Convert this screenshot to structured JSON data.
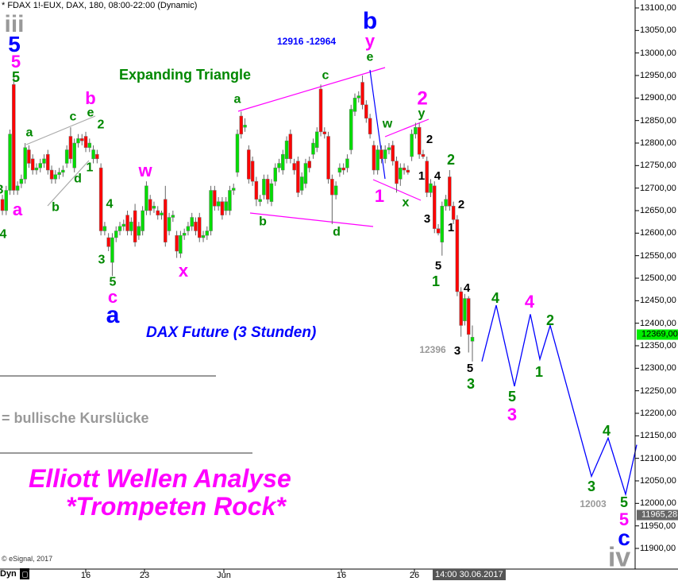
{
  "header": {
    "instrument": "* FDAX 1!-EUX, DAX, 180, 08:00-22:00 (Dynamic)"
  },
  "chart_data": {
    "type": "candlestick",
    "title": "DAX Future (3 Stunden)",
    "ylim": [
      11880,
      13120
    ],
    "yticks": [
      13100,
      13050,
      13000,
      12950,
      12900,
      12850,
      12800,
      12750,
      12700,
      12650,
      12600,
      12550,
      12500,
      12450,
      12400,
      12350,
      12300,
      12250,
      12200,
      12150,
      12100,
      12050,
      12000,
      11950,
      11900
    ],
    "ytick_labels": [
      "13100,00",
      "13050,00",
      "13000,00",
      "12950,00",
      "12900,00",
      "12850,00",
      "12800,00",
      "12750,00",
      "12700,00",
      "12650,00",
      "12600,00",
      "12550,00",
      "12500,00",
      "12450,00",
      "12400,00",
      "12350,00",
      "12300,00",
      "12250,00",
      "12200,00",
      "12150,00",
      "12100,00",
      "12050,00",
      "12000,00",
      "11950,00",
      "11900,00"
    ],
    "xtick_labels": [
      "16",
      "23",
      "Jun",
      "16",
      "26"
    ],
    "up_color": "#00dd00",
    "down_color": "#ff0000",
    "candles_ohlc": [
      [
        12675,
        12685,
        12640,
        12650
      ],
      [
        12650,
        12705,
        12640,
        12695
      ],
      [
        12695,
        12830,
        12685,
        12820
      ],
      [
        12930,
        12945,
        12685,
        12695
      ],
      [
        12695,
        12715,
        12685,
        12705
      ],
      [
        12710,
        12730,
        12700,
        12720
      ],
      [
        12720,
        12800,
        12710,
        12790
      ],
      [
        12785,
        12795,
        12745,
        12755
      ],
      [
        12765,
        12775,
        12730,
        12740
      ],
      [
        12740,
        12755,
        12730,
        12745
      ],
      [
        12745,
        12765,
        12735,
        12755
      ],
      [
        12755,
        12775,
        12745,
        12765
      ],
      [
        12775,
        12785,
        12730,
        12740
      ],
      [
        12740,
        12750,
        12710,
        12720
      ],
      [
        12720,
        12740,
        12710,
        12730
      ],
      [
        12730,
        12745,
        12720,
        12735
      ],
      [
        12735,
        12750,
        12725,
        12740
      ],
      [
        12755,
        12795,
        12745,
        12785
      ],
      [
        12815,
        12835,
        12755,
        12765
      ],
      [
        12745,
        12810,
        12735,
        12800
      ],
      [
        12800,
        12820,
        12790,
        12810
      ],
      [
        12810,
        12820,
        12795,
        12805
      ],
      [
        12815,
        12825,
        12780,
        12790
      ],
      [
        12790,
        12810,
        12780,
        12800
      ],
      [
        12765,
        12795,
        12755,
        12785
      ],
      [
        12775,
        12785,
        12755,
        12765
      ],
      [
        12745,
        12755,
        12595,
        12605
      ],
      [
        12605,
        12625,
        12595,
        12615
      ],
      [
        12590,
        12600,
        12560,
        12570
      ],
      [
        12535,
        12600,
        12505,
        12590
      ],
      [
        12590,
        12615,
        12580,
        12605
      ],
      [
        12605,
        12625,
        12595,
        12615
      ],
      [
        12615,
        12630,
        12605,
        12620
      ],
      [
        12640,
        12650,
        12595,
        12605
      ],
      [
        12605,
        12635,
        12595,
        12625
      ],
      [
        12650,
        12665,
        12570,
        12580
      ],
      [
        12595,
        12625,
        12585,
        12615
      ],
      [
        12605,
        12660,
        12595,
        12650
      ],
      [
        12650,
        12715,
        12640,
        12705
      ],
      [
        12675,
        12685,
        12640,
        12650
      ],
      [
        12655,
        12670,
        12645,
        12660
      ],
      [
        12650,
        12660,
        12630,
        12640
      ],
      [
        12640,
        12650,
        12630,
        12645
      ],
      [
        12675,
        12705,
        12570,
        12580
      ],
      [
        12605,
        12645,
        12595,
        12635
      ],
      [
        12635,
        12650,
        12625,
        12640
      ],
      [
        12595,
        12605,
        12545,
        12560
      ],
      [
        12555,
        12605,
        12545,
        12595
      ],
      [
        12595,
        12610,
        12585,
        12600
      ],
      [
        12605,
        12625,
        12595,
        12615
      ],
      [
        12615,
        12645,
        12605,
        12635
      ],
      [
        12625,
        12635,
        12595,
        12605
      ],
      [
        12635,
        12645,
        12580,
        12590
      ],
      [
        12590,
        12605,
        12580,
        12595
      ],
      [
        12595,
        12615,
        12585,
        12605
      ],
      [
        12605,
        12705,
        12595,
        12695
      ],
      [
        12695,
        12705,
        12650,
        12660
      ],
      [
        12660,
        12680,
        12650,
        12670
      ],
      [
        12670,
        12680,
        12630,
        12640
      ],
      [
        12650,
        12680,
        12640,
        12670
      ],
      [
        12650,
        12705,
        12640,
        12695
      ],
      [
        12695,
        12710,
        12685,
        12700
      ],
      [
        12735,
        12830,
        12725,
        12820
      ],
      [
        12860,
        12870,
        12810,
        12820
      ],
      [
        12835,
        12855,
        12825,
        12840
      ],
      [
        12785,
        12795,
        12710,
        12720
      ],
      [
        12760,
        12770,
        12705,
        12715
      ],
      [
        12715,
        12725,
        12660,
        12675
      ],
      [
        12670,
        12685,
        12660,
        12675
      ],
      [
        12685,
        12730,
        12675,
        12720
      ],
      [
        12720,
        12730,
        12665,
        12675
      ],
      [
        12670,
        12720,
        12660,
        12710
      ],
      [
        12715,
        12755,
        12705,
        12745
      ],
      [
        12745,
        12765,
        12735,
        12755
      ],
      [
        12740,
        12785,
        12730,
        12775
      ],
      [
        12765,
        12815,
        12755,
        12805
      ],
      [
        12820,
        12830,
        12755,
        12765
      ],
      [
        12755,
        12765,
        12730,
        12740
      ],
      [
        12760,
        12770,
        12680,
        12690
      ],
      [
        12695,
        12735,
        12685,
        12725
      ],
      [
        12710,
        12765,
        12700,
        12755
      ],
      [
        12760,
        12770,
        12735,
        12745
      ],
      [
        12775,
        12810,
        12765,
        12800
      ],
      [
        12790,
        12835,
        12780,
        12825
      ],
      [
        12920,
        12930,
        12815,
        12825
      ],
      [
        12825,
        12835,
        12810,
        12820
      ],
      [
        12815,
        12825,
        12710,
        12720
      ],
      [
        12720,
        12730,
        12620,
        12685
      ],
      [
        12685,
        12715,
        12675,
        12705
      ],
      [
        12735,
        12755,
        12725,
        12745
      ],
      [
        12745,
        12755,
        12730,
        12740
      ],
      [
        12745,
        12775,
        12735,
        12765
      ],
      [
        12785,
        12885,
        12775,
        12875
      ],
      [
        12870,
        12910,
        12860,
        12900
      ],
      [
        12900,
        12915,
        12890,
        12905
      ],
      [
        12935,
        12950,
        12875,
        12885
      ],
      [
        12885,
        12895,
        12845,
        12855
      ],
      [
        12855,
        12865,
        12810,
        12820
      ],
      [
        12795,
        12805,
        12730,
        12740
      ],
      [
        12740,
        12795,
        12730,
        12785
      ],
      [
        12785,
        12795,
        12755,
        12765
      ],
      [
        12765,
        12795,
        12755,
        12785
      ],
      [
        12785,
        12800,
        12775,
        12790
      ],
      [
        12795,
        12805,
        12750,
        12760
      ],
      [
        12760,
        12770,
        12690,
        12710
      ],
      [
        12720,
        12755,
        12705,
        12745
      ],
      [
        12745,
        12755,
        12730,
        12740
      ],
      [
        12740,
        12750,
        12730,
        12735
      ],
      [
        12770,
        12830,
        12760,
        12820
      ],
      [
        12820,
        12845,
        12810,
        12835
      ],
      [
        12835,
        12845,
        12765,
        12775
      ],
      [
        12775,
        12785,
        12765,
        12770
      ],
      [
        12760,
        12770,
        12680,
        12690
      ],
      [
        12690,
        12720,
        12680,
        12710
      ],
      [
        12705,
        12715,
        12600,
        12610
      ],
      [
        12610,
        12620,
        12595,
        12600
      ],
      [
        12580,
        12670,
        12550,
        12660
      ],
      [
        12660,
        12685,
        12650,
        12675
      ],
      [
        12725,
        12740,
        12650,
        12660
      ],
      [
        12660,
        12670,
        12620,
        12630
      ],
      [
        12630,
        12640,
        12460,
        12470
      ],
      [
        12470,
        12480,
        12370,
        12395
      ],
      [
        12405,
        12465,
        12395,
        12455
      ],
      [
        12455,
        12460,
        12335,
        12375
      ],
      [
        12360,
        12395,
        12315,
        12369
      ]
    ],
    "forecast_path": [
      12315,
      12440,
      12260,
      12420,
      12320,
      12395,
      12060,
      12145,
      12020,
      12130
    ],
    "forecast_color": "#0000ff",
    "last_price": {
      "label": "12369,00",
      "value": 12369,
      "color": "#00ee00"
    },
    "marker_price": {
      "label": "11965,28",
      "value": 11965.28,
      "color": "#666666"
    }
  },
  "annotations": [
    {
      "text": "iii",
      "color": "#999999"
    },
    {
      "text": "5",
      "color": "#0000ff"
    },
    {
      "text": "5",
      "color": "#ff00ff"
    },
    {
      "text": "5",
      "color": "#008800"
    },
    {
      "text": "a",
      "color": "#008800"
    },
    {
      "text": "c",
      "color": "#008800"
    },
    {
      "text": "e",
      "color": "#008800"
    },
    {
      "text": "b",
      "color": "#ff00ff"
    },
    {
      "text": "2",
      "color": "#008800"
    },
    {
      "text": "1",
      "color": "#008800"
    },
    {
      "text": "d",
      "color": "#008800"
    },
    {
      "text": "b",
      "color": "#008800"
    },
    {
      "text": "a",
      "color": "#ff00ff"
    },
    {
      "text": "3",
      "color": "#008800"
    },
    {
      "text": "4",
      "color": "#008800"
    },
    {
      "text": "4",
      "color": "#008800"
    },
    {
      "text": "3",
      "color": "#008800"
    },
    {
      "text": "5",
      "color": "#008800"
    },
    {
      "text": "c",
      "color": "#ff00ff"
    },
    {
      "text": "a",
      "color": "#0000ff"
    },
    {
      "text": "w",
      "color": "#ff00ff"
    },
    {
      "text": "x",
      "color": "#ff00ff"
    },
    {
      "text": "b",
      "color": "#0000ff"
    },
    {
      "text": "y",
      "color": "#ff00ff"
    },
    {
      "text": "e",
      "color": "#008800"
    },
    {
      "text": "a",
      "color": "#008800"
    },
    {
      "text": "c",
      "color": "#008800"
    },
    {
      "text": "b",
      "color": "#008800"
    },
    {
      "text": "d",
      "color": "#008800"
    },
    {
      "text": "2",
      "color": "#ff00ff"
    },
    {
      "text": "y",
      "color": "#008800"
    },
    {
      "text": "w",
      "color": "#008800"
    },
    {
      "text": "1",
      "color": "#ff00ff"
    },
    {
      "text": "x",
      "color": "#008800"
    },
    {
      "text": "2",
      "color": "#000000"
    },
    {
      "text": "1",
      "color": "#000000"
    },
    {
      "text": "4",
      "color": "#000000"
    },
    {
      "text": "3",
      "color": "#000000"
    },
    {
      "text": "2",
      "color": "#000000"
    },
    {
      "text": "1",
      "color": "#000000"
    },
    {
      "text": "5",
      "color": "#000000"
    },
    {
      "text": "4",
      "color": "#000000"
    },
    {
      "text": "3",
      "color": "#000000"
    },
    {
      "text": "5",
      "color": "#000000"
    },
    {
      "text": "2",
      "color": "#008800"
    },
    {
      "text": "1",
      "color": "#008800"
    },
    {
      "text": "3",
      "color": "#008800"
    },
    {
      "text": "12396",
      "color": "#999999"
    },
    {
      "text": "4",
      "color": "#008800"
    },
    {
      "text": "5",
      "color": "#008800"
    },
    {
      "text": "3",
      "color": "#ff00ff"
    },
    {
      "text": "4",
      "color": "#ff00ff"
    },
    {
      "text": "1",
      "color": "#008800"
    },
    {
      "text": "2",
      "color": "#008800"
    },
    {
      "text": "3",
      "color": "#008800"
    },
    {
      "text": "4",
      "color": "#008800"
    },
    {
      "text": "12003",
      "color": "#999999"
    },
    {
      "text": "5",
      "color": "#008800"
    },
    {
      "text": "5",
      "color": "#ff00ff"
    },
    {
      "text": "c",
      "color": "#0000ff"
    },
    {
      "text": "iv",
      "color": "#999999"
    }
  ],
  "texts": {
    "triangle": "Expanding Triangle",
    "range": "12916 -12964",
    "subtitle": "DAX Future (3 Stunden)",
    "gap_legend": "= bullische Kurslücke",
    "headline1": "Elliott Wellen Analyse",
    "headline2": "*Trompeten Rock*",
    "copyright": "© eSignal, 2017"
  },
  "footer": {
    "mode": "Dyn",
    "timestamp": "14:00 30.06.2017"
  }
}
